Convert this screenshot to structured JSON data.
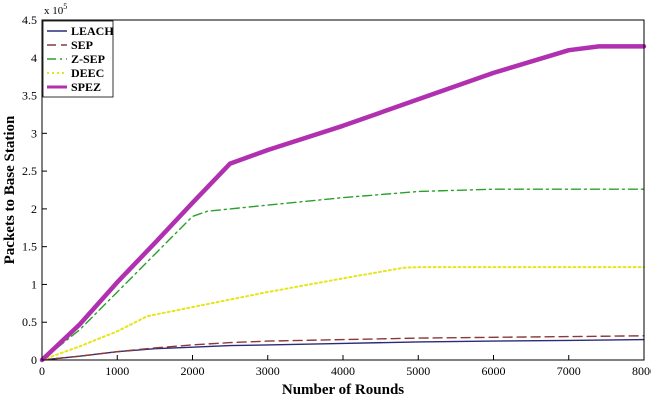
{
  "chart_data": {
    "type": "line",
    "title": "",
    "xlabel": "Number of Rounds",
    "ylabel": "Packets to Base Station",
    "y_multiplier_label": "x 10",
    "y_multiplier_exponent": "5",
    "xlim": [
      0,
      8000
    ],
    "ylim": [
      0,
      4.5
    ],
    "x_ticks": [
      "0",
      "1000",
      "2000",
      "3000",
      "4000",
      "5000",
      "6000",
      "7000",
      "8000"
    ],
    "y_ticks": [
      "0",
      "0.5",
      "1",
      "1.5",
      "2",
      "2.5",
      "3",
      "3.5",
      "4",
      "4.5"
    ],
    "grid": false,
    "legend_position": "top-left",
    "series": [
      {
        "name": "LEACH",
        "color": "#2b2b7a",
        "style": "solid",
        "points": [
          [
            0,
            0
          ],
          [
            500,
            0.05
          ],
          [
            1000,
            0.11
          ],
          [
            1500,
            0.15
          ],
          [
            2000,
            0.17
          ],
          [
            2500,
            0.19
          ],
          [
            3000,
            0.2
          ],
          [
            4000,
            0.22
          ],
          [
            5000,
            0.24
          ],
          [
            6000,
            0.25
          ],
          [
            7000,
            0.26
          ],
          [
            8000,
            0.27
          ]
        ]
      },
      {
        "name": "SEP",
        "color": "#8b3a3a",
        "style": "dashed",
        "points": [
          [
            0,
            0
          ],
          [
            500,
            0.05
          ],
          [
            1000,
            0.11
          ],
          [
            1500,
            0.16
          ],
          [
            2000,
            0.2
          ],
          [
            2500,
            0.23
          ],
          [
            3000,
            0.25
          ],
          [
            4000,
            0.27
          ],
          [
            5000,
            0.29
          ],
          [
            6000,
            0.3
          ],
          [
            7000,
            0.31
          ],
          [
            8000,
            0.32
          ]
        ]
      },
      {
        "name": "Z-SEP",
        "color": "#2ca02c",
        "style": "dashdot",
        "points": [
          [
            0,
            0
          ],
          [
            500,
            0.4
          ],
          [
            1000,
            0.9
          ],
          [
            1500,
            1.4
          ],
          [
            2000,
            1.9
          ],
          [
            2200,
            1.97
          ],
          [
            3000,
            2.05
          ],
          [
            4000,
            2.15
          ],
          [
            5000,
            2.23
          ],
          [
            6000,
            2.26
          ],
          [
            7000,
            2.26
          ],
          [
            8000,
            2.26
          ]
        ]
      },
      {
        "name": "DEEC",
        "color": "#e6e617",
        "style": "dotted",
        "points": [
          [
            0,
            0
          ],
          [
            500,
            0.18
          ],
          [
            1000,
            0.38
          ],
          [
            1400,
            0.58
          ],
          [
            2000,
            0.7
          ],
          [
            3000,
            0.9
          ],
          [
            4000,
            1.08
          ],
          [
            4800,
            1.22
          ],
          [
            5000,
            1.23
          ],
          [
            6000,
            1.23
          ],
          [
            7000,
            1.23
          ],
          [
            8000,
            1.23
          ]
        ]
      },
      {
        "name": "SPEZ",
        "color": "#b030b0",
        "style": "solid-thick",
        "points": [
          [
            0,
            0
          ],
          [
            500,
            0.47
          ],
          [
            1000,
            1.03
          ],
          [
            1500,
            1.55
          ],
          [
            2000,
            2.08
          ],
          [
            2500,
            2.6
          ],
          [
            3000,
            2.78
          ],
          [
            4000,
            3.1
          ],
          [
            5000,
            3.45
          ],
          [
            6000,
            3.8
          ],
          [
            7000,
            4.1
          ],
          [
            7400,
            4.15
          ],
          [
            8000,
            4.15
          ]
        ]
      }
    ]
  }
}
